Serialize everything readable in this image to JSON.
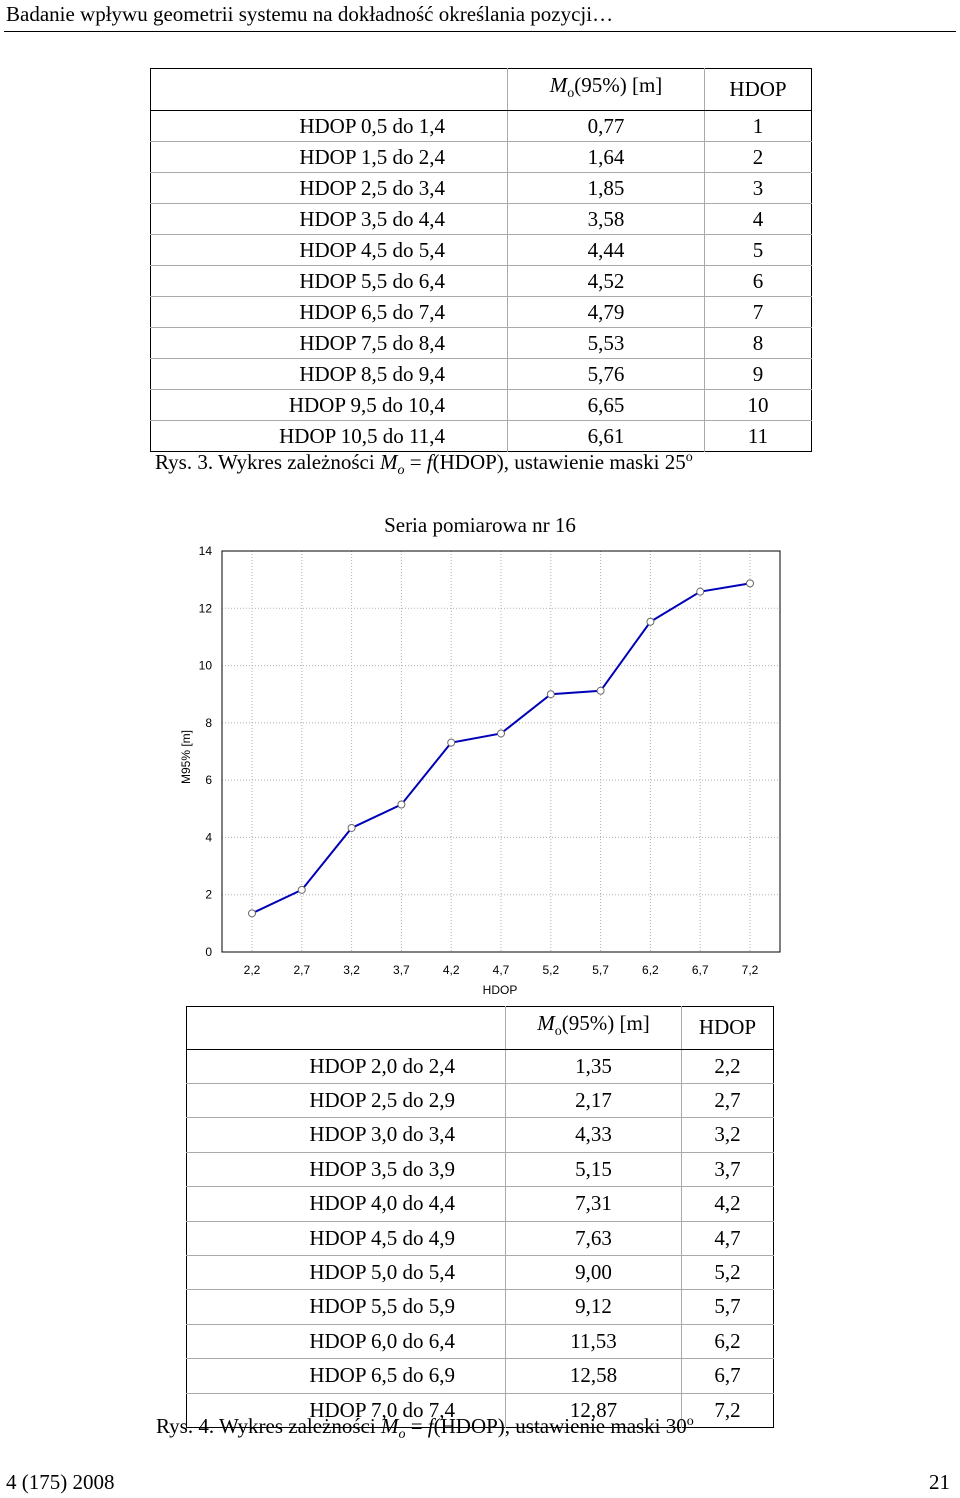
{
  "header": {
    "title": "Badanie wpływu geometrii systemu na dokładność określania pozycji…"
  },
  "table1": {
    "col_mo_prefix": "M",
    "col_mo_sub": "o",
    "col_mo_suffix": "(95%) [m]",
    "col_hdop": "HDOP",
    "rows": [
      {
        "label": "HDOP 0,5 do 1,4",
        "mo": "0,77",
        "hdop": "1"
      },
      {
        "label": "HDOP 1,5 do 2,4",
        "mo": "1,64",
        "hdop": "2"
      },
      {
        "label": "HDOP 2,5 do 3,4",
        "mo": "1,85",
        "hdop": "3"
      },
      {
        "label": "HDOP 3,5 do 4,4",
        "mo": "3,58",
        "hdop": "4"
      },
      {
        "label": "HDOP 4,5 do 5,4",
        "mo": "4,44",
        "hdop": "5"
      },
      {
        "label": "HDOP 5,5 do 6,4",
        "mo": "4,52",
        "hdop": "6"
      },
      {
        "label": "HDOP 6,5 do 7,4",
        "mo": "4,79",
        "hdop": "7"
      },
      {
        "label": "HDOP 7,5 do 8,4",
        "mo": "5,53",
        "hdop": "8"
      },
      {
        "label": "HDOP 8,5 do 9,4",
        "mo": "5,76",
        "hdop": "9"
      },
      {
        "label": "HDOP 9,5 do 10,4",
        "mo": "6,65",
        "hdop": "10"
      },
      {
        "label": "HDOP 10,5 do 11,4",
        "mo": "6,61",
        "hdop": "11"
      }
    ]
  },
  "caption3": {
    "prefix": "Rys. 3. Wykres zależności ",
    "m": "M",
    "sub": "o",
    "eq": " = ",
    "f": "f",
    "rest": "(HDOP), ustawienie maski 25",
    "sup": "o"
  },
  "chart_data": {
    "type": "line",
    "title": "Seria pomiarowa nr 16",
    "xlabel": "HDOP",
    "ylabel": "M95% [m]",
    "categories": [
      "2,2",
      "2,7",
      "3,2",
      "3,7",
      "4,2",
      "4,7",
      "5,2",
      "5,7",
      "6,2",
      "6,7",
      "7,2"
    ],
    "values": [
      1.35,
      2.17,
      4.33,
      5.15,
      7.31,
      7.63,
      9.0,
      9.12,
      11.53,
      12.58,
      12.87
    ],
    "yticks": [
      "0",
      "2",
      "4",
      "6",
      "8",
      "10",
      "12",
      "14"
    ],
    "ylim": [
      0,
      14
    ],
    "grid": true,
    "line_color": "#0000b8",
    "marker_fill": "#ffffff",
    "marker_stroke": "#6a6a6a"
  },
  "table2": {
    "col_mo_prefix": "M",
    "col_mo_sub": "o",
    "col_mo_suffix": "(95%) [m]",
    "col_hdop": "HDOP",
    "rows": [
      {
        "label": "HDOP 2,0 do 2,4",
        "mo": "1,35",
        "hdop": "2,2"
      },
      {
        "label": "HDOP 2,5 do 2,9",
        "mo": "2,17",
        "hdop": "2,7"
      },
      {
        "label": "HDOP 3,0 do 3,4",
        "mo": "4,33",
        "hdop": "3,2"
      },
      {
        "label": "HDOP 3,5 do 3,9",
        "mo": "5,15",
        "hdop": "3,7"
      },
      {
        "label": "HDOP 4,0 do 4,4",
        "mo": "7,31",
        "hdop": "4,2"
      },
      {
        "label": "HDOP 4,5 do 4,9",
        "mo": "7,63",
        "hdop": "4,7"
      },
      {
        "label": "HDOP 5,0 do 5,4",
        "mo": "9,00",
        "hdop": "5,2"
      },
      {
        "label": "HDOP 5,5 do 5,9",
        "mo": "9,12",
        "hdop": "5,7"
      },
      {
        "label": "HDOP 6,0 do 6,4",
        "mo": "11,53",
        "hdop": "6,2"
      },
      {
        "label": "HDOP 6,5 do 6,9",
        "mo": "12,58",
        "hdop": "6,7"
      },
      {
        "label": "HDOP 7,0 do 7,4",
        "mo": "12,87",
        "hdop": "7,2"
      }
    ]
  },
  "caption4": {
    "prefix": "Rys. 4. Wykres zależności ",
    "m": "M",
    "sub": "o",
    "eq": " = ",
    "f": "f",
    "rest": "(HDOP), ustawienie maski 30",
    "sup": "o"
  },
  "footer": {
    "left": "4 (175) 2008",
    "right": "21"
  }
}
